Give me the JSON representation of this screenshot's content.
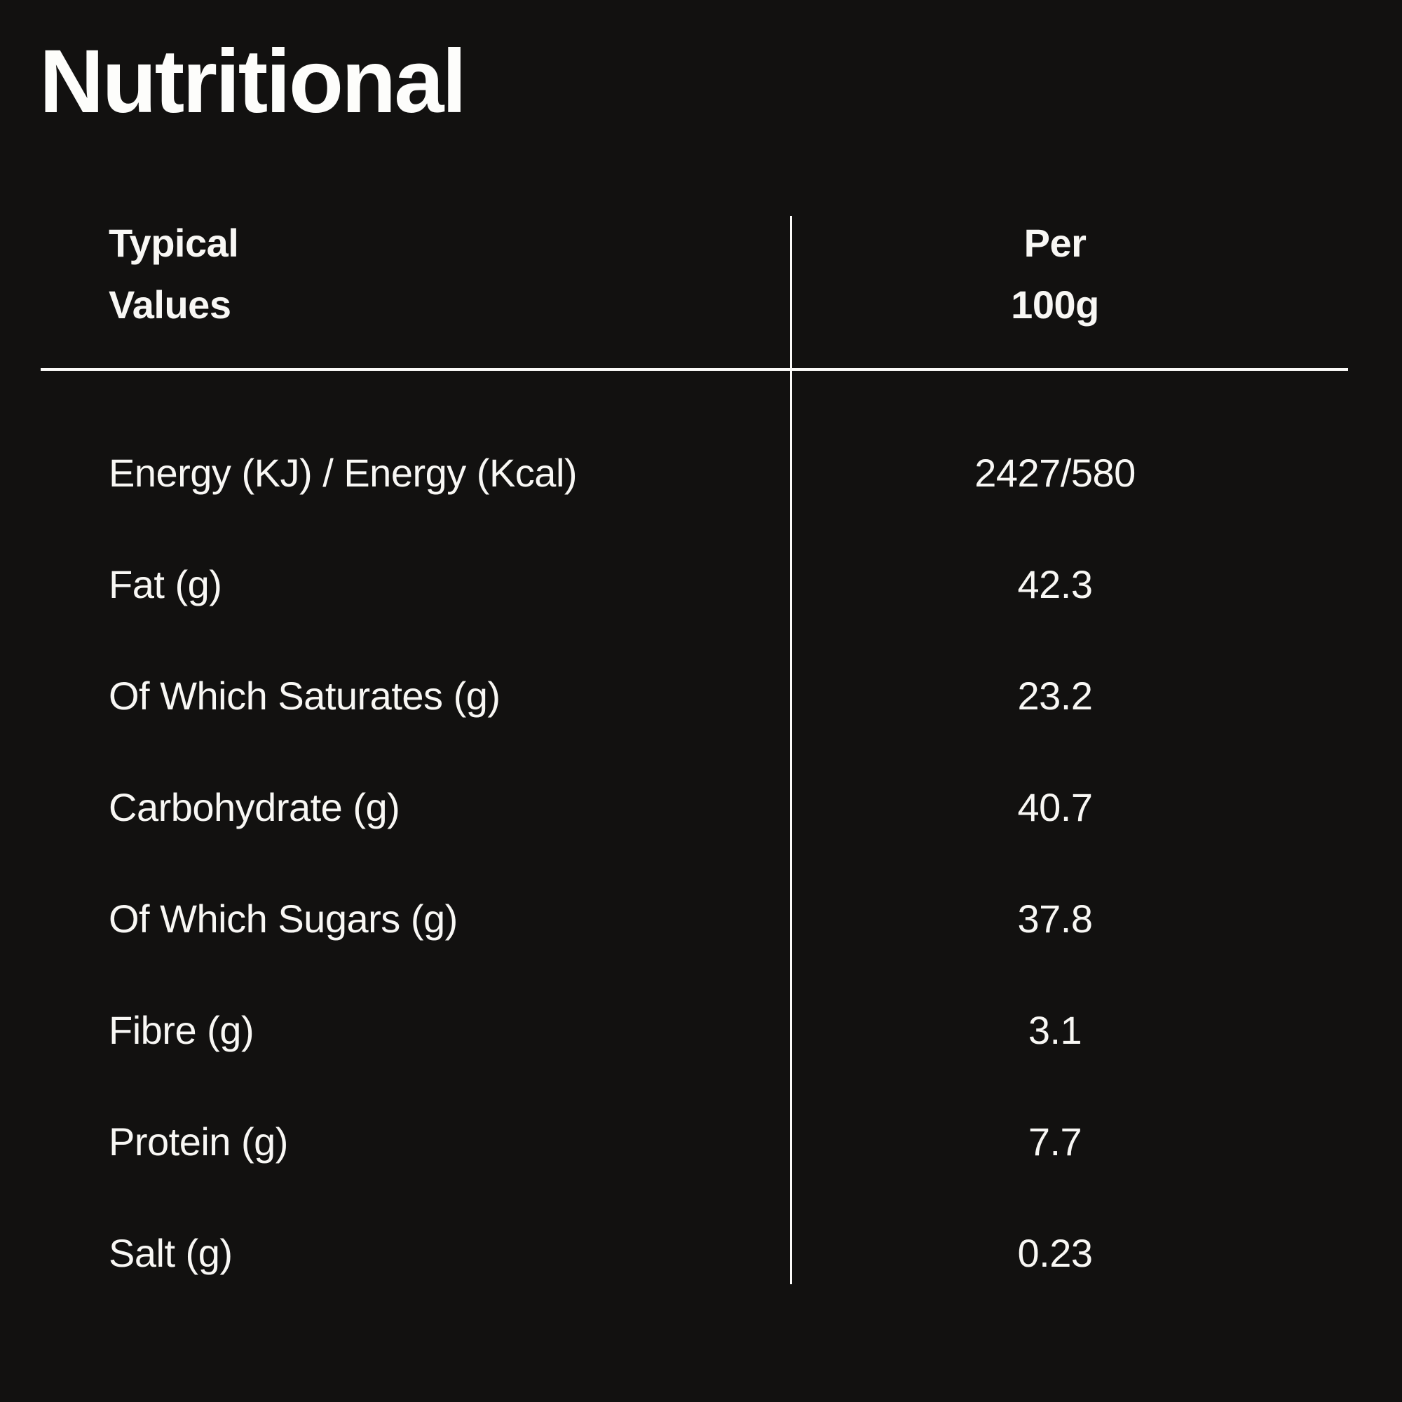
{
  "page": {
    "background_color": "#121110",
    "text_color": "#f8f7f4",
    "line_color": "#fbfaf8"
  },
  "title": "Nutritional",
  "table": {
    "columns": [
      {
        "label_line1": "Typical",
        "label_line2": "Values"
      },
      {
        "label_line1": "Per",
        "label_line2": "100g"
      }
    ],
    "rows": [
      {
        "label": "Energy (KJ) / Energy (Kcal)",
        "value": "2427/580"
      },
      {
        "label": "Fat (g)",
        "value": "42.3"
      },
      {
        "label": "Of Which Saturates (g)",
        "value": "23.2"
      },
      {
        "label": "Carbohydrate (g)",
        "value": "40.7"
      },
      {
        "label": "Of Which Sugars (g)",
        "value": "37.8"
      },
      {
        "label": "Fibre (g)",
        "value": "3.1"
      },
      {
        "label": "Protein (g)",
        "value": "7.7"
      },
      {
        "label": "Salt (g)",
        "value": "0.23"
      }
    ]
  }
}
